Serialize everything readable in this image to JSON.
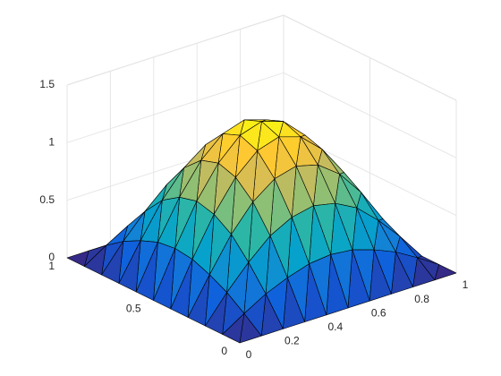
{
  "chart_data": {
    "type": "surface",
    "x": [
      0,
      0.1,
      0.2,
      0.3,
      0.4,
      0.5,
      0.6,
      0.7,
      0.8,
      0.9,
      1
    ],
    "y": [
      0,
      0.1,
      0.2,
      0.3,
      0.4,
      0.5,
      0.6,
      0.7,
      0.8,
      0.9,
      1
    ],
    "z": [
      [
        0,
        0,
        0,
        0,
        0,
        0,
        0,
        0,
        0,
        0,
        0
      ],
      [
        0,
        0.12,
        0.23,
        0.31,
        0.37,
        0.39,
        0.37,
        0.31,
        0.23,
        0.12,
        0
      ],
      [
        0,
        0.23,
        0.43,
        0.6,
        0.7,
        0.74,
        0.7,
        0.6,
        0.43,
        0.23,
        0
      ],
      [
        0,
        0.31,
        0.6,
        0.82,
        0.96,
        1.01,
        0.96,
        0.82,
        0.6,
        0.31,
        0
      ],
      [
        0,
        0.37,
        0.7,
        0.96,
        1.13,
        1.19,
        1.13,
        0.96,
        0.7,
        0.37,
        0
      ],
      [
        0,
        0.39,
        0.74,
        1.01,
        1.19,
        1.25,
        1.19,
        1.01,
        0.74,
        0.39,
        0
      ],
      [
        0,
        0.37,
        0.7,
        0.96,
        1.13,
        1.19,
        1.13,
        0.96,
        0.7,
        0.37,
        0
      ],
      [
        0,
        0.31,
        0.6,
        0.82,
        0.96,
        1.01,
        0.96,
        0.82,
        0.6,
        0.31,
        0
      ],
      [
        0,
        0.23,
        0.43,
        0.6,
        0.7,
        0.74,
        0.7,
        0.6,
        0.43,
        0.23,
        0
      ],
      [
        0,
        0.12,
        0.23,
        0.31,
        0.37,
        0.39,
        0.37,
        0.31,
        0.23,
        0.12,
        0
      ],
      [
        0,
        0,
        0,
        0,
        0,
        0,
        0,
        0,
        0,
        0,
        0
      ]
    ],
    "xlim": [
      0,
      1
    ],
    "ylim": [
      0,
      1
    ],
    "zlim": [
      0,
      1.5
    ],
    "xticks": [
      0,
      0.2,
      0.4,
      0.6,
      0.8,
      1
    ],
    "yticks": [
      0,
      0.5,
      1
    ],
    "zticks": [
      0,
      0.5,
      1,
      1.5
    ],
    "grid": true,
    "colormap": [
      "#352a87",
      "#0f5cdd",
      "#1481d6",
      "#06a4ca",
      "#2eb7a4",
      "#87bf77",
      "#d1bb59",
      "#fec832",
      "#f9fb0e"
    ]
  }
}
